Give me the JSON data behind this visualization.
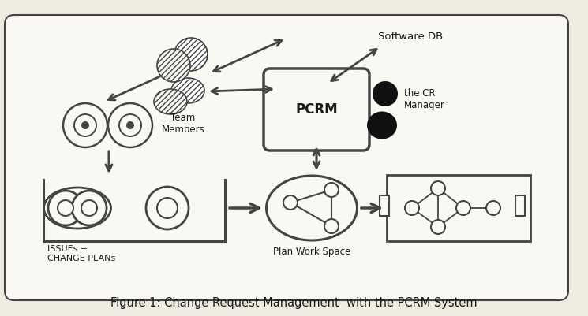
{
  "bg_color": "#f0ebe0",
  "box_facecolor": "#faf8f3",
  "border_color": "#444444",
  "text_color": "#1a1a1a",
  "title": "Figure 1: Change Request Management  with the PCRM System",
  "title_fontsize": 10.5,
  "label_team": "Team\nMembers",
  "label_software": "Software DB",
  "label_pcrm": "PCRM",
  "label_cr": "the CR\nManager",
  "label_issues": "ISSUEs +\nCHANGE PLANs",
  "label_workspace": "Plan Work Space",
  "fig_w": 7.45,
  "fig_h": 4.01,
  "dpi": 100
}
